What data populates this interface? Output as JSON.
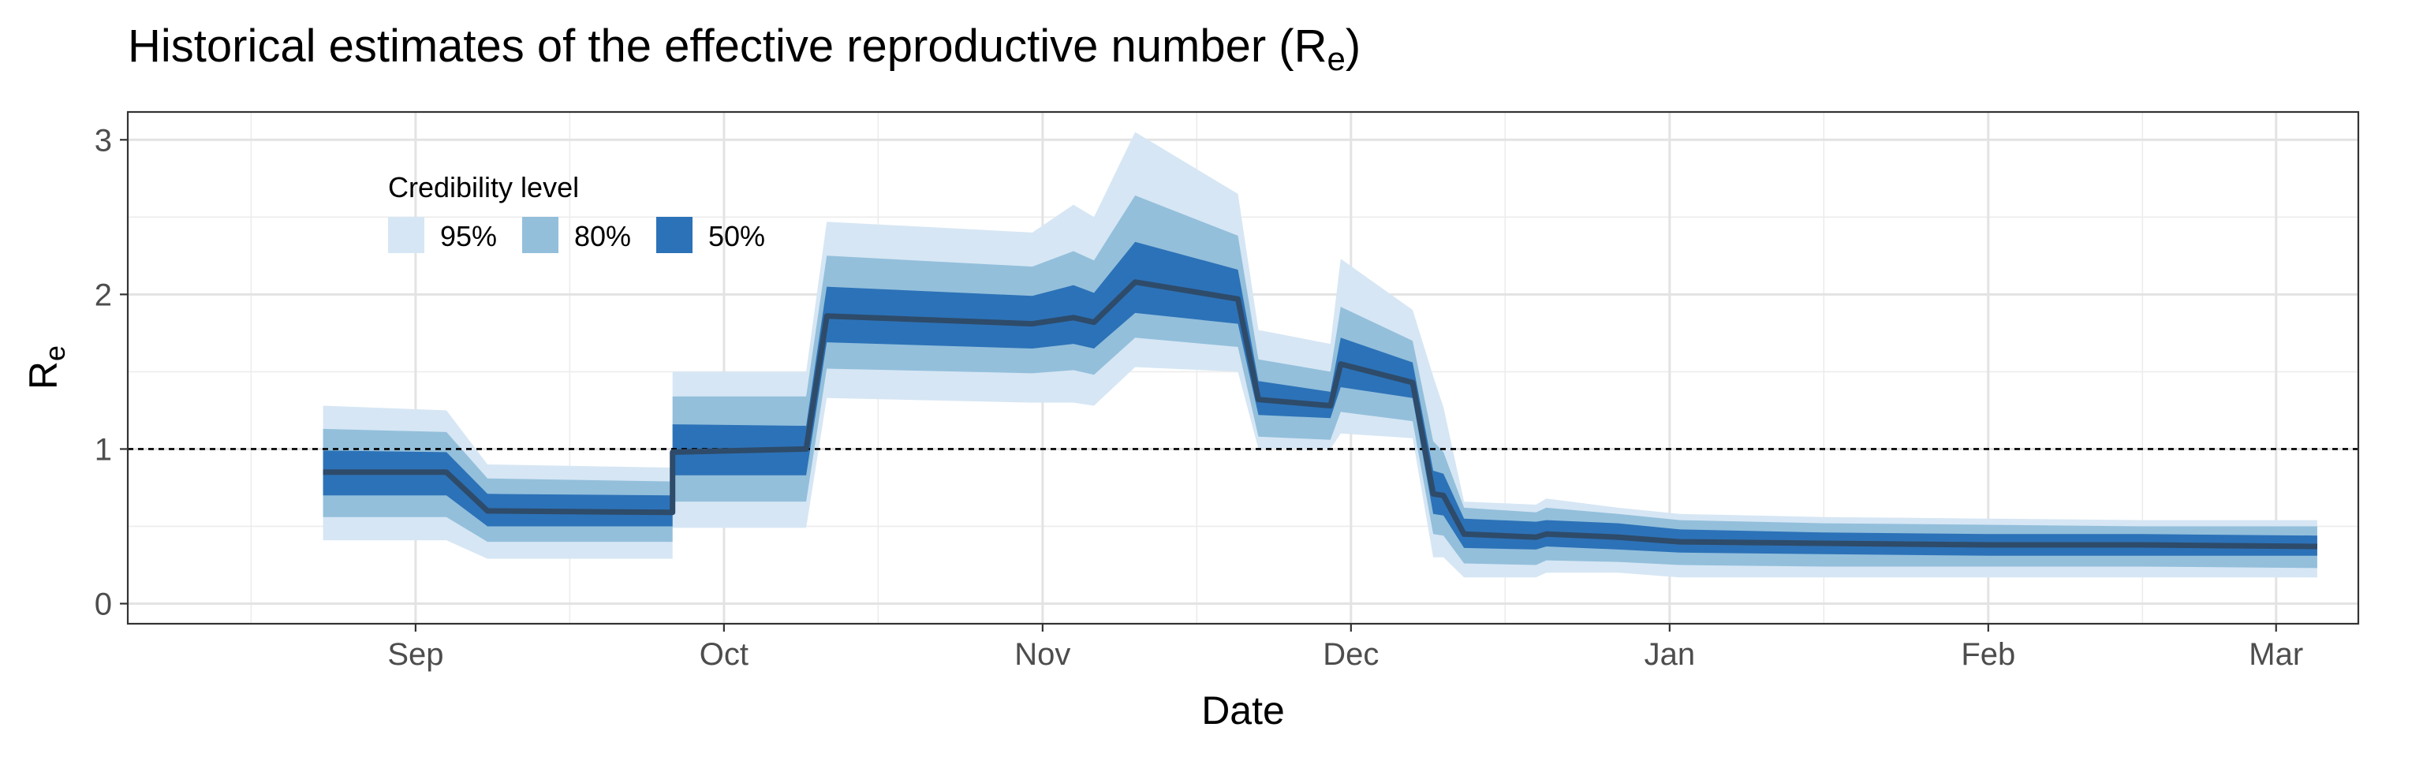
{
  "chart_data": {
    "type": "area",
    "title": {
      "main": "Historical estimates of the effective reproductive number (R",
      "sub": "e",
      "close": ")"
    },
    "xlabel": "Date",
    "ylabel": {
      "main": "R",
      "sub": "e"
    },
    "ylim": [
      -0.13,
      3.18
    ],
    "xlim": [
      "2020-08-04",
      "2021-03-09"
    ],
    "grid": true,
    "y_ticks": [
      0,
      1,
      2,
      3
    ],
    "y_tick_labels": [
      "0",
      "1",
      "2",
      "3"
    ],
    "x_ticks": [
      {
        "date": "2020-09-01",
        "label": "Sep"
      },
      {
        "date": "2020-10-01",
        "label": "Oct"
      },
      {
        "date": "2020-11-01",
        "label": "Nov"
      },
      {
        "date": "2020-12-01",
        "label": "Dec"
      },
      {
        "date": "2021-01-01",
        "label": "Jan"
      },
      {
        "date": "2021-02-01",
        "label": "Feb"
      },
      {
        "date": "2021-03-01",
        "label": "Mar"
      }
    ],
    "x_minor": [
      "2020-08-16",
      "2020-09-16",
      "2020-10-16",
      "2020-11-16",
      "2020-12-16",
      "2021-01-16",
      "2021-02-16"
    ],
    "reference_line": {
      "y": 1,
      "style": "dashed"
    },
    "legend": {
      "title": "Credibility level",
      "position": "top-left",
      "items": [
        {
          "label": "95%",
          "color": "#d6e6f4"
        },
        {
          "label": "80%",
          "color": "#93bfdb"
        },
        {
          "label": "50%",
          "color": "#2c72b8"
        }
      ]
    },
    "colors": {
      "line": "#2e4b6a",
      "ci95": "#d6e6f4",
      "ci80": "#93bfdb",
      "ci50": "#2c72b8"
    },
    "series": [
      {
        "x": [
          "2020-08-23",
          "2020-09-04",
          "2020-09-08",
          "2020-09-26",
          "2020-09-26",
          "2020-10-09",
          "2020-10-11",
          "2020-10-31",
          "2020-11-04",
          "2020-11-06",
          "2020-11-10",
          "2020-11-20",
          "2020-11-22",
          "2020-11-29",
          "2020-11-30",
          "2020-12-07",
          "2020-12-09",
          "2020-12-10",
          "2020-12-12",
          "2020-12-19",
          "2020-12-20",
          "2020-12-27",
          "2021-01-02",
          "2021-01-16",
          "2021-02-01",
          "2021-02-16",
          "2021-03-05"
        ],
        "mean": [
          0.85,
          0.85,
          0.6,
          0.59,
          0.98,
          1.0,
          1.86,
          1.81,
          1.85,
          1.82,
          2.08,
          1.97,
          1.32,
          1.28,
          1.55,
          1.43,
          0.71,
          0.7,
          0.45,
          0.43,
          0.45,
          0.43,
          0.4,
          0.39,
          0.38,
          0.38,
          0.37
        ],
        "lo95": [
          0.41,
          0.41,
          0.29,
          0.29,
          0.49,
          0.49,
          1.33,
          1.3,
          1.3,
          1.28,
          1.53,
          1.5,
          1.0,
          1.0,
          1.1,
          1.07,
          0.3,
          0.3,
          0.17,
          0.17,
          0.2,
          0.2,
          0.17,
          0.17,
          0.17,
          0.17,
          0.17
        ],
        "hi95": [
          1.28,
          1.25,
          0.9,
          0.88,
          1.5,
          1.5,
          2.47,
          2.4,
          2.58,
          2.5,
          3.05,
          2.65,
          1.77,
          1.68,
          2.23,
          1.9,
          1.47,
          1.27,
          0.66,
          0.64,
          0.68,
          0.62,
          0.58,
          0.56,
          0.55,
          0.54,
          0.54
        ],
        "lo80": [
          0.56,
          0.56,
          0.4,
          0.4,
          0.66,
          0.66,
          1.52,
          1.49,
          1.51,
          1.48,
          1.72,
          1.66,
          1.08,
          1.06,
          1.24,
          1.18,
          0.45,
          0.44,
          0.26,
          0.25,
          0.28,
          0.27,
          0.25,
          0.24,
          0.24,
          0.24,
          0.23
        ],
        "hi80": [
          1.13,
          1.11,
          0.81,
          0.79,
          1.34,
          1.34,
          2.25,
          2.18,
          2.28,
          2.22,
          2.64,
          2.38,
          1.58,
          1.5,
          1.92,
          1.7,
          1.05,
          0.98,
          0.62,
          0.59,
          0.62,
          0.58,
          0.54,
          0.52,
          0.51,
          0.5,
          0.5
        ],
        "lo50": [
          0.7,
          0.7,
          0.5,
          0.5,
          0.83,
          0.83,
          1.69,
          1.65,
          1.68,
          1.65,
          1.88,
          1.81,
          1.22,
          1.2,
          1.4,
          1.33,
          0.58,
          0.57,
          0.36,
          0.35,
          0.37,
          0.35,
          0.33,
          0.32,
          0.31,
          0.31,
          0.31
        ],
        "hi50": [
          0.99,
          0.98,
          0.71,
          0.7,
          1.16,
          1.15,
          2.05,
          1.99,
          2.06,
          2.01,
          2.34,
          2.16,
          1.44,
          1.37,
          1.72,
          1.56,
          0.86,
          0.84,
          0.55,
          0.53,
          0.54,
          0.52,
          0.48,
          0.46,
          0.45,
          0.45,
          0.44
        ]
      }
    ]
  }
}
